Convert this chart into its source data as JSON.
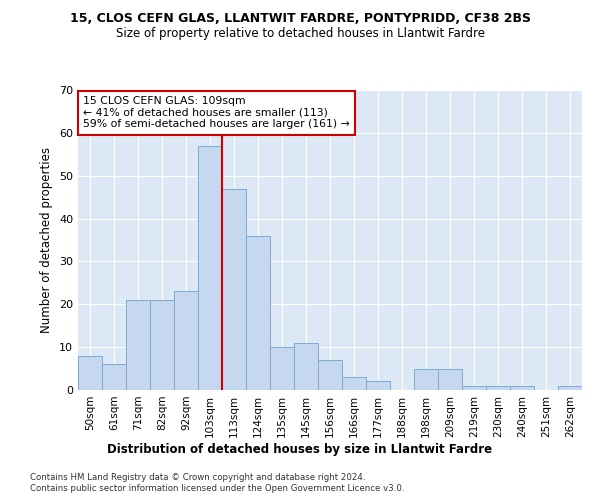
{
  "title": "15, CLOS CEFN GLAS, LLANTWIT FARDRE, PONTYPRIDD, CF38 2BS",
  "subtitle": "Size of property relative to detached houses in Llantwit Fardre",
  "xlabel": "Distribution of detached houses by size in Llantwit Fardre",
  "ylabel": "Number of detached properties",
  "bin_labels": [
    "50sqm",
    "61sqm",
    "71sqm",
    "82sqm",
    "92sqm",
    "103sqm",
    "113sqm",
    "124sqm",
    "135sqm",
    "145sqm",
    "156sqm",
    "166sqm",
    "177sqm",
    "188sqm",
    "198sqm",
    "209sqm",
    "219sqm",
    "230sqm",
    "240sqm",
    "251sqm",
    "262sqm"
  ],
  "bar_heights": [
    8,
    6,
    21,
    21,
    23,
    57,
    47,
    36,
    10,
    11,
    7,
    3,
    2,
    0,
    5,
    5,
    1,
    1,
    1,
    0,
    1
  ],
  "bar_color": "#c5d8ef",
  "bar_edge_color": "#7aadd4",
  "vline_x_index": 5.5,
  "vline_color": "#cc0000",
  "annotation_text": "15 CLOS CEFN GLAS: 109sqm\n← 41% of detached houses are smaller (113)\n59% of semi-detached houses are larger (161) →",
  "annotation_box_color": "#ffffff",
  "annotation_box_edge_color": "#cc0000",
  "ylim": [
    0,
    70
  ],
  "yticks": [
    0,
    10,
    20,
    30,
    40,
    50,
    60,
    70
  ],
  "background_color": "#dce8f5",
  "footer_line1": "Contains HM Land Registry data © Crown copyright and database right 2024.",
  "footer_line2": "Contains public sector information licensed under the Open Government Licence v3.0."
}
